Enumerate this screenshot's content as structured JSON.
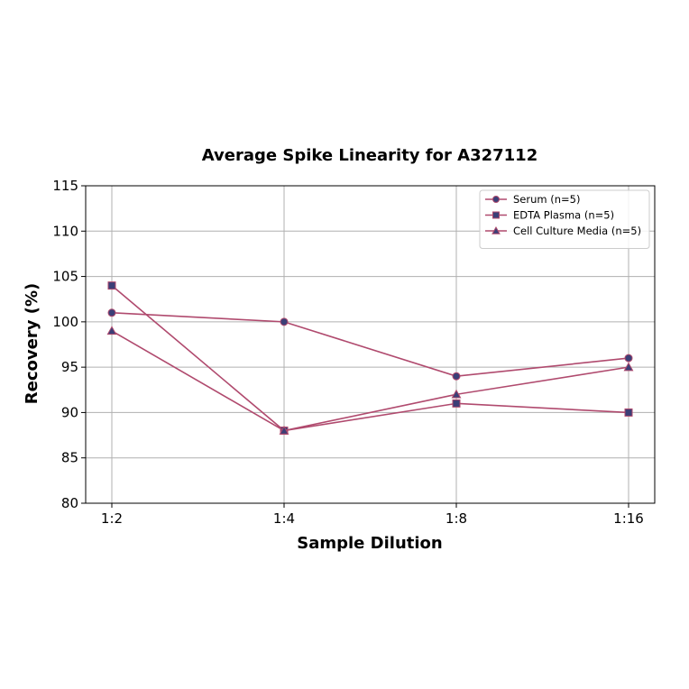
{
  "chart_data": {
    "type": "line",
    "title": "Average Spike Linearity for A327112",
    "xlabel": "Sample Dilution",
    "ylabel": "Recovery (%)",
    "categories": [
      "1:2",
      "1:4",
      "1:8",
      "1:16"
    ],
    "ylim": [
      80,
      115
    ],
    "yticks": [
      80,
      85,
      90,
      95,
      100,
      105,
      110,
      115
    ],
    "grid": true,
    "legend_position": "top-right",
    "line_color": "#b04a6e",
    "marker_color": "#3b3f77",
    "series": [
      {
        "name": "Serum (n=5)",
        "marker": "circle",
        "values": [
          101,
          100,
          94,
          96
        ]
      },
      {
        "name": "EDTA Plasma (n=5)",
        "marker": "square",
        "values": [
          104,
          88,
          91,
          90
        ]
      },
      {
        "name": "Cell Culture Media (n=5)",
        "marker": "triangle",
        "values": [
          99,
          88,
          92,
          95
        ]
      }
    ]
  }
}
